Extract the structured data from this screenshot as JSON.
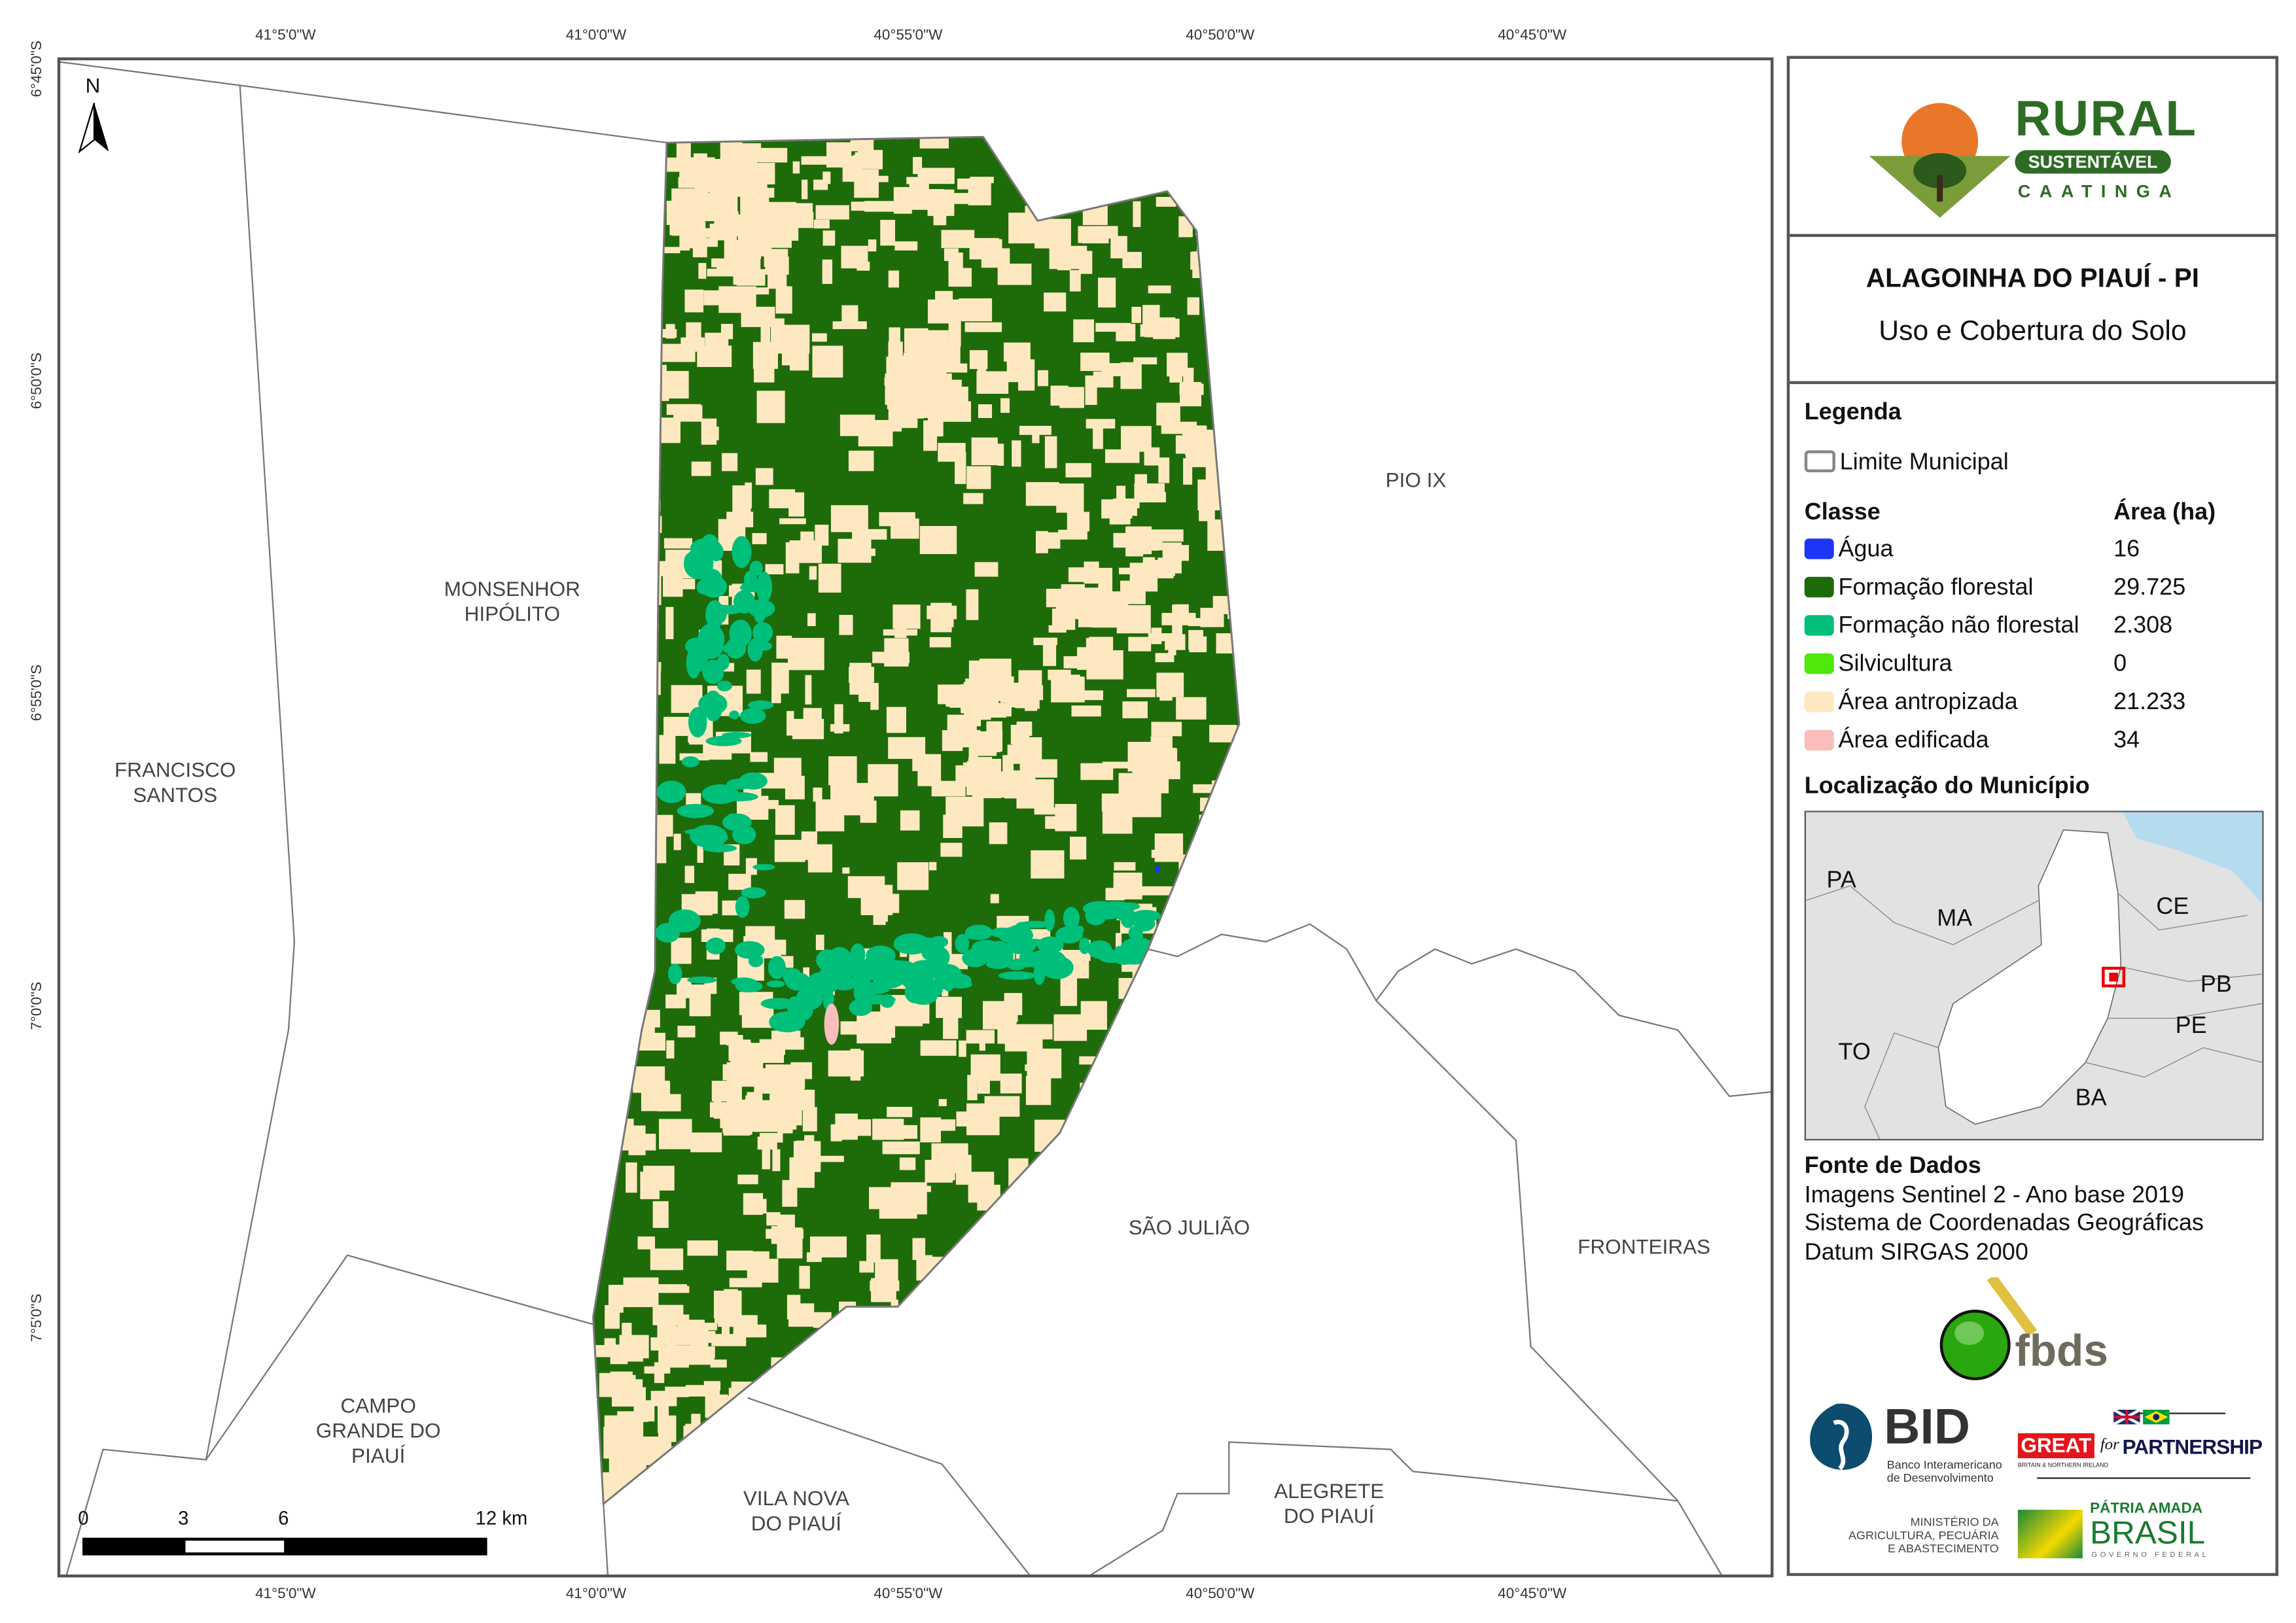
{
  "map": {
    "north_label": "N",
    "longitude_ticks": [
      "41°5'0\"W",
      "41°0'0\"W",
      "40°55'0\"W",
      "40°50'0\"W",
      "40°45'0\"W"
    ],
    "latitude_ticks": [
      "6°45'0\"S",
      "6°50'0\"S",
      "6°55'0\"S",
      "7°0'0\"S",
      "7°5'0\"S"
    ],
    "places": [
      {
        "lines": [
          "MONSENHOR",
          "HIPÓLITO"
        ]
      },
      {
        "lines": [
          "FRANCISCO",
          "SANTOS"
        ]
      },
      {
        "lines": [
          "PIO IX"
        ]
      },
      {
        "lines": [
          "SÃO JULIÃO"
        ]
      },
      {
        "lines": [
          "FRONTEIRAS"
        ]
      },
      {
        "lines": [
          "CAMPO",
          "GRANDE DO",
          "PIAUÍ"
        ]
      },
      {
        "lines": [
          "VILA NOVA",
          "DO PIAUÍ"
        ]
      },
      {
        "lines": [
          "ALEGRETE",
          "DO PIAUÍ"
        ]
      }
    ],
    "scale_bar": {
      "labels": [
        "0",
        "3",
        "6",
        "12 km"
      ]
    }
  },
  "panel": {
    "logo": {
      "line1": "RURAL",
      "line2": "SUSTENTÁVEL",
      "line3": "CAATINGA"
    },
    "title": "ALAGOINHA DO PIAUÍ - PI",
    "subtitle": "Uso e Cobertura do Solo",
    "legend": {
      "heading": "Legenda",
      "boundary_label": "Limite Municipal",
      "class_header": "Classe",
      "area_header": "Área (ha)",
      "classes": [
        {
          "label": "Água",
          "area": "16",
          "color": "#1f35f5"
        },
        {
          "label": "Formação florestal",
          "area": "29.725",
          "color": "#1e6b0a"
        },
        {
          "label": "Formação não florestal",
          "area": "2.308",
          "color": "#00bf7a"
        },
        {
          "label": "Silvicultura",
          "area": "0",
          "color": "#4ee80a"
        },
        {
          "label": "Área antropizada",
          "area": "21.233",
          "color": "#fde8c0"
        },
        {
          "label": "Área edificada",
          "area": "34",
          "color": "#fbbcbc"
        }
      ]
    },
    "location": {
      "heading": "Localização do Município",
      "states": [
        "PA",
        "MA",
        "CE",
        "PB",
        "PE",
        "TO",
        "BA"
      ]
    },
    "sources": {
      "heading": "Fonte de Dados",
      "lines": [
        "Imagens Sentinel 2 - Ano base 2019",
        "Sistema de Coordenadas Geográficas",
        "Datum SIRGAS 2000"
      ]
    },
    "partners": {
      "fbds": "fbds",
      "bid": "BID",
      "bid_sub1": "Banco Interamericano",
      "bid_sub2": "de Desenvolvimento",
      "great": "GREAT",
      "great_for": "for",
      "great_partnership": "PARTNERSHIP",
      "great_sub": "BRITAIN & NORTHERN IRELAND",
      "ministry1": "MINISTÉRIO DA",
      "ministry2": "AGRICULTURA, PECUÁRIA",
      "ministry3": "E ABASTECIMENTO",
      "brasil1": "PÁTRIA AMADA",
      "brasil2": "BRASIL",
      "brasil3": "GOVERNO FEDERAL"
    }
  }
}
